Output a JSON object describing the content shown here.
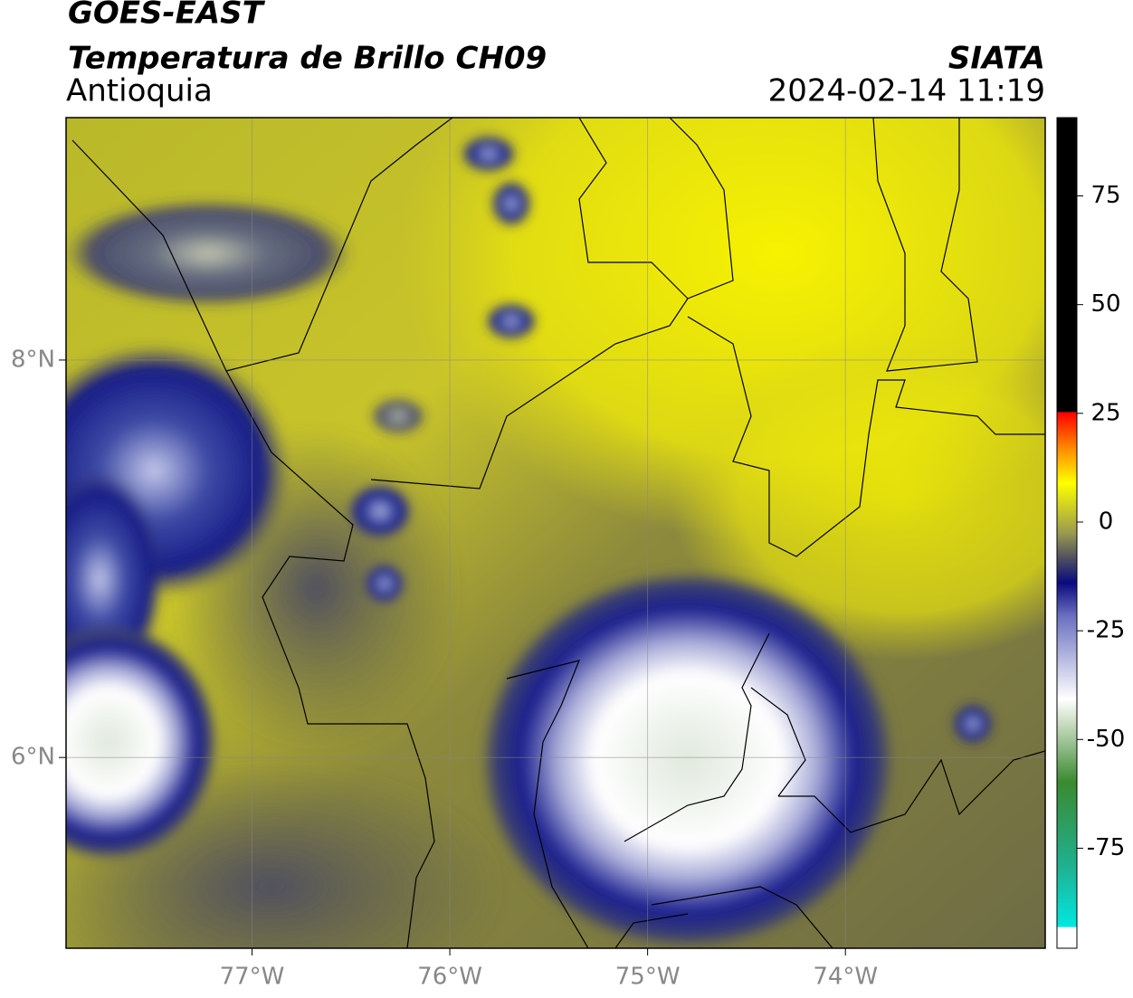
{
  "header": {
    "title": "GOES-EAST",
    "subtitle": "Temperatura de Brillo CH09",
    "region": "Antioquia",
    "source": "SIATA",
    "timestamp": "2024-02-14 11:19"
  },
  "map": {
    "xlim": [
      -77.94,
      -72.99
    ],
    "ylim": [
      5.04,
      9.22
    ],
    "xticks": [
      {
        "value": -77,
        "label": "77°W"
      },
      {
        "value": -76,
        "label": "76°W"
      },
      {
        "value": -75,
        "label": "75°W"
      },
      {
        "value": -74,
        "label": "74°W"
      }
    ],
    "yticks": [
      {
        "value": 8,
        "label": "8°N"
      },
      {
        "value": 6,
        "label": "6°N"
      }
    ],
    "grid": true
  },
  "colorbar": {
    "lim": [
      -98,
      93
    ],
    "ticks": [
      75,
      50,
      25,
      0,
      -25,
      -50,
      -75
    ]
  }
}
